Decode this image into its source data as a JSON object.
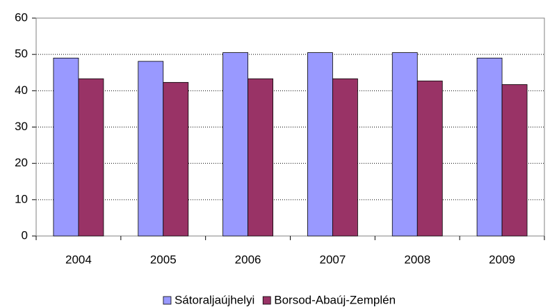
{
  "chart_data": {
    "type": "bar",
    "categories": [
      "2004",
      "2005",
      "2006",
      "2007",
      "2008",
      "2009"
    ],
    "series": [
      {
        "name": "Sátoraljaújhelyi",
        "color": "#9999ff",
        "values": [
          49.0,
          48.1,
          50.5,
          50.5,
          50.5,
          49.0
        ]
      },
      {
        "name": "Borsod-Abaúj-Zemplén",
        "color": "#993366",
        "values": [
          43.3,
          42.3,
          43.3,
          43.3,
          42.7,
          41.7
        ]
      }
    ],
    "ylim": [
      0,
      60
    ],
    "yticks": [
      0,
      10,
      20,
      30,
      40,
      50,
      60
    ],
    "grid": true,
    "legend": "bottom"
  }
}
